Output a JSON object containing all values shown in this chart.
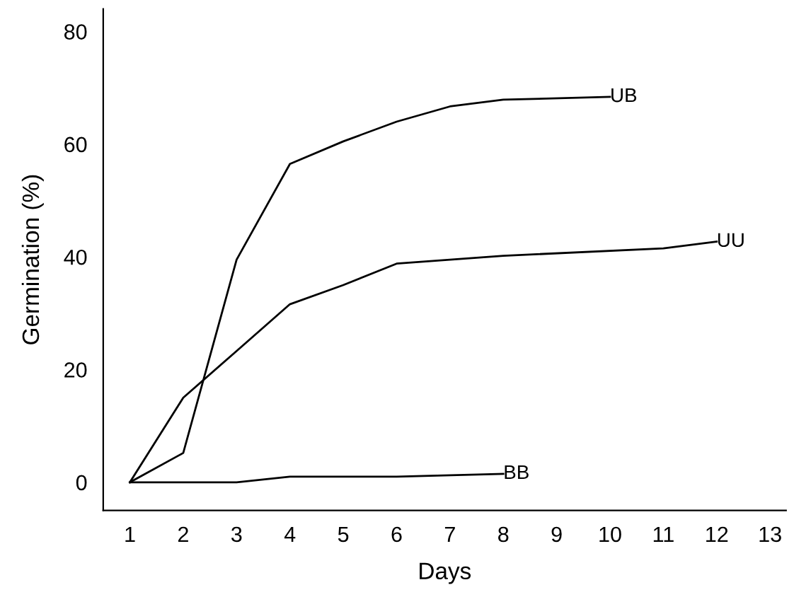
{
  "chart_data": {
    "type": "line",
    "xlabel": "Days",
    "ylabel": "Germination (%)",
    "xlim": [
      0.5,
      13.3
    ],
    "ylim": [
      -5,
      84
    ],
    "xticks": [
      1,
      2,
      3,
      4,
      5,
      6,
      7,
      8,
      9,
      10,
      11,
      12,
      13
    ],
    "yticks": [
      0,
      20,
      40,
      60,
      80
    ],
    "grid": false,
    "legend": false,
    "marker": "none",
    "line_style": "solid",
    "series": [
      {
        "name": "UB",
        "color": "#000000",
        "x": [
          1,
          2,
          3,
          4,
          5,
          6,
          7,
          8,
          10
        ],
        "values": [
          0,
          5.2,
          39.5,
          56.5,
          60.5,
          64,
          66.7,
          67.9,
          68.4
        ]
      },
      {
        "name": "UU",
        "color": "#000000",
        "x": [
          1,
          2,
          3,
          4,
          5,
          6,
          7,
          8,
          11,
          12
        ],
        "values": [
          0,
          15,
          23.3,
          31.6,
          35,
          38.8,
          39.5,
          40.2,
          41.5,
          42.7
        ]
      },
      {
        "name": "BB",
        "color": "#000000",
        "x": [
          1,
          3,
          4,
          6,
          8
        ],
        "values": [
          0,
          0,
          1,
          1,
          1.5
        ]
      }
    ]
  }
}
